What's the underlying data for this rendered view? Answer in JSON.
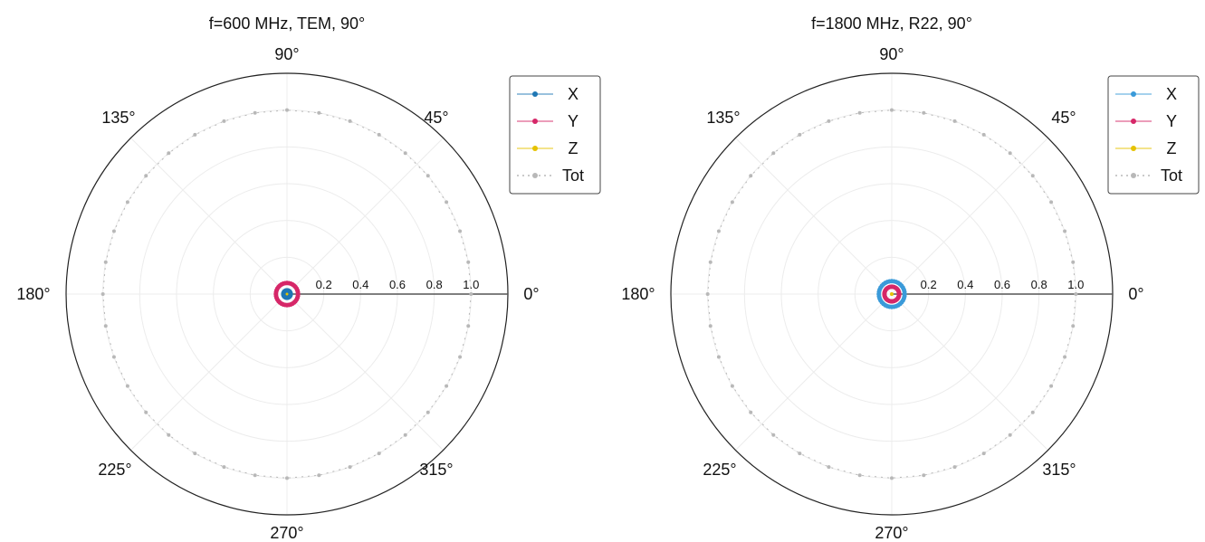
{
  "chart_data": [
    {
      "type": "polar",
      "title": "f=600 MHz, TEM, 90°",
      "r_max": 1.2,
      "radial_ticks": [
        "0.2",
        "0.4",
        "0.6",
        "0.8",
        "1.0"
      ],
      "angle_labels": [
        "0°",
        "45°",
        "90°",
        "135°",
        "180°",
        "225°",
        "270°",
        "315°"
      ],
      "legend_position": "top-right",
      "series": [
        {
          "name": "X",
          "color": "#1f77b4",
          "theta_deg_step": 10,
          "r": 0.02
        },
        {
          "name": "Y",
          "color": "#d62768",
          "theta_deg_step": 10,
          "r": 0.06
        },
        {
          "name": "Z",
          "color": "#e6c200",
          "theta_deg_step": 10,
          "r": 0.0
        },
        {
          "name": "Tot",
          "color": "#b8b8b8",
          "theta_deg_step": 10,
          "r": 1.0
        }
      ]
    },
    {
      "type": "polar",
      "title": "f=1800 MHz, R22, 90°",
      "r_max": 1.2,
      "radial_ticks": [
        "0.2",
        "0.4",
        "0.6",
        "0.8",
        "1.0"
      ],
      "angle_labels": [
        "0°",
        "45°",
        "90°",
        "135°",
        "180°",
        "225°",
        "270°",
        "315°"
      ],
      "legend_position": "top-right",
      "series": [
        {
          "name": "X",
          "color": "#3a9ad9",
          "theta_deg_step": 10,
          "r": 0.07
        },
        {
          "name": "Y",
          "color": "#d62768",
          "theta_deg_step": 10,
          "r": 0.04
        },
        {
          "name": "Z",
          "color": "#e6c200",
          "theta_deg_step": 10,
          "r": 0.0
        },
        {
          "name": "Tot",
          "color": "#b8b8b8",
          "theta_deg_step": 10,
          "r": 1.0
        }
      ]
    }
  ]
}
